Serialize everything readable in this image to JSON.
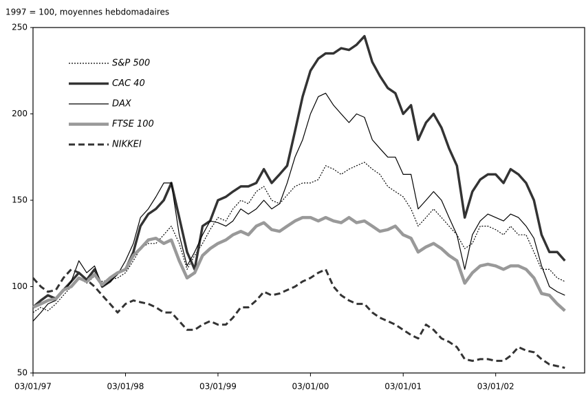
{
  "chart_data": {
    "type": "line",
    "subtitle": "1997 = 100, moyennes hebdomadaires",
    "x": [
      "1997-01-03",
      "1997-02-03",
      "1997-03-03",
      "1997-04-03",
      "1997-05-03",
      "1997-06-03",
      "1997-07-03",
      "1997-08-03",
      "1997-09-03",
      "1997-10-03",
      "1997-11-03",
      "1997-12-03",
      "1998-01-03",
      "1998-02-03",
      "1998-03-03",
      "1998-04-03",
      "1998-05-03",
      "1998-06-03",
      "1998-07-03",
      "1998-08-03",
      "1998-09-03",
      "1998-10-03",
      "1998-11-03",
      "1998-12-03",
      "1999-01-03",
      "1999-02-03",
      "1999-03-03",
      "1999-04-03",
      "1999-05-03",
      "1999-06-03",
      "1999-07-03",
      "1999-08-03",
      "1999-09-03",
      "1999-10-03",
      "1999-11-03",
      "1999-12-03",
      "2000-01-03",
      "2000-02-03",
      "2000-03-03",
      "2000-04-03",
      "2000-05-03",
      "2000-06-03",
      "2000-07-03",
      "2000-08-03",
      "2000-09-03",
      "2000-10-03",
      "2000-11-03",
      "2000-12-03",
      "2001-01-03",
      "2001-02-03",
      "2001-03-03",
      "2001-04-03",
      "2001-05-03",
      "2001-06-03",
      "2001-07-03",
      "2001-08-03",
      "2001-09-03",
      "2001-10-03",
      "2001-11-03",
      "2001-12-03",
      "2002-01-03",
      "2002-02-03",
      "2002-03-03",
      "2002-04-03",
      "2002-05-03",
      "2002-06-03",
      "2002-07-03",
      "2002-08-03",
      "2002-09-03",
      "2002-10-03"
    ],
    "series": [
      {
        "name": "S&P 500",
        "color": "#000000",
        "width": 1.2,
        "dash": "2,2",
        "values": [
          85,
          88,
          86,
          90,
          95,
          100,
          105,
          102,
          106,
          103,
          104,
          105,
          108,
          115,
          122,
          125,
          125,
          130,
          135,
          125,
          110,
          118,
          125,
          133,
          140,
          138,
          145,
          150,
          148,
          155,
          158,
          150,
          148,
          153,
          158,
          160,
          160,
          162,
          170,
          168,
          165,
          168,
          170,
          172,
          168,
          165,
          158,
          155,
          152,
          145,
          135,
          140,
          145,
          140,
          135,
          130,
          122,
          125,
          135,
          135,
          133,
          130,
          135,
          130,
          130,
          120,
          110,
          110,
          105,
          103
        ]
      },
      {
        "name": "CAC 40",
        "color": "#333333",
        "width": 3.5,
        "dash": "none",
        "values": [
          88,
          92,
          95,
          93,
          98,
          103,
          108,
          104,
          110,
          100,
          103,
          108,
          110,
          120,
          135,
          142,
          145,
          150,
          160,
          140,
          120,
          110,
          135,
          138,
          150,
          152,
          155,
          158,
          158,
          160,
          168,
          160,
          165,
          170,
          190,
          210,
          225,
          232,
          235,
          235,
          238,
          237,
          240,
          245,
          230,
          222,
          215,
          212,
          200,
          205,
          185,
          195,
          200,
          192,
          180,
          170,
          140,
          155,
          162,
          165,
          165,
          160,
          168,
          165,
          160,
          150,
          130,
          120,
          120,
          115
        ]
      },
      {
        "name": "DAX",
        "color": "#000000",
        "width": 1.2,
        "dash": "none",
        "values": [
          80,
          85,
          90,
          92,
          97,
          103,
          115,
          108,
          112,
          100,
          103,
          107,
          115,
          125,
          140,
          145,
          152,
          160,
          160,
          130,
          112,
          120,
          130,
          138,
          137,
          135,
          138,
          145,
          142,
          145,
          150,
          145,
          148,
          160,
          175,
          185,
          200,
          210,
          212,
          205,
          200,
          195,
          200,
          198,
          185,
          180,
          175,
          175,
          165,
          165,
          145,
          150,
          155,
          150,
          140,
          130,
          110,
          130,
          138,
          142,
          140,
          138,
          142,
          140,
          135,
          128,
          112,
          100,
          97,
          95
        ]
      },
      {
        "name": "FTSE 100",
        "color": "#999999",
        "width": 4.5,
        "dash": "none",
        "values": [
          88,
          90,
          92,
          93,
          98,
          100,
          105,
          103,
          107,
          101,
          105,
          108,
          110,
          118,
          122,
          127,
          128,
          125,
          127,
          115,
          105,
          108,
          118,
          122,
          125,
          127,
          130,
          132,
          130,
          135,
          137,
          133,
          132,
          135,
          138,
          140,
          140,
          138,
          140,
          138,
          137,
          140,
          137,
          138,
          135,
          132,
          133,
          135,
          130,
          128,
          120,
          123,
          125,
          122,
          118,
          115,
          102,
          108,
          112,
          113,
          112,
          110,
          112,
          112,
          110,
          105,
          96,
          95,
          90,
          86
        ]
      },
      {
        "name": "NIKKEI",
        "color": "#333333",
        "width": 3,
        "dash": "9,5",
        "values": [
          105,
          100,
          97,
          98,
          105,
          110,
          108,
          104,
          100,
          95,
          90,
          85,
          90,
          92,
          91,
          90,
          88,
          85,
          85,
          80,
          75,
          75,
          78,
          80,
          78,
          78,
          82,
          88,
          88,
          92,
          97,
          95,
          96,
          98,
          100,
          103,
          105,
          108,
          110,
          100,
          95,
          92,
          90,
          90,
          85,
          82,
          80,
          78,
          75,
          72,
          70,
          78,
          75,
          70,
          68,
          65,
          58,
          57,
          58,
          58,
          57,
          57,
          60,
          65,
          63,
          62,
          58,
          55,
          54,
          53
        ]
      }
    ],
    "xlim": [
      "1997-01-03",
      "2002-12-20"
    ],
    "xticks": [
      {
        "value": "1997-01-03",
        "label": "03/01/97"
      },
      {
        "value": "1998-01-03",
        "label": "03/01/98"
      },
      {
        "value": "1999-01-03",
        "label": "03/01/99"
      },
      {
        "value": "2000-01-03",
        "label": "03/01/00"
      },
      {
        "value": "2001-01-03",
        "label": "03/01/01"
      },
      {
        "value": "2002-01-03",
        "label": "03/01/02"
      }
    ],
    "ylim": [
      50,
      250
    ],
    "yticks": [
      50,
      100,
      150,
      200,
      250
    ],
    "legend": "upper left"
  }
}
